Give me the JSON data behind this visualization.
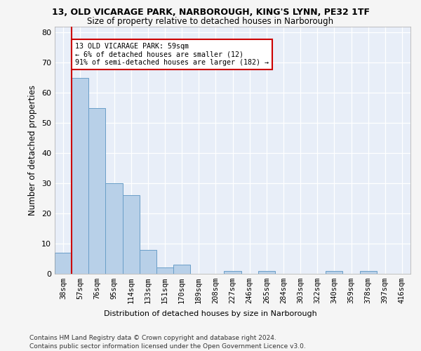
{
  "title_line1": "13, OLD VICARAGE PARK, NARBOROUGH, KING'S LYNN, PE32 1TF",
  "title_line2": "Size of property relative to detached houses in Narborough",
  "xlabel": "Distribution of detached houses by size in Narborough",
  "ylabel": "Number of detached properties",
  "bin_labels": [
    "38sqm",
    "57sqm",
    "76sqm",
    "95sqm",
    "114sqm",
    "133sqm",
    "151sqm",
    "170sqm",
    "189sqm",
    "208sqm",
    "227sqm",
    "246sqm",
    "265sqm",
    "284sqm",
    "303sqm",
    "322sqm",
    "340sqm",
    "359sqm",
    "378sqm",
    "397sqm",
    "416sqm"
  ],
  "bar_values": [
    7,
    65,
    55,
    30,
    26,
    8,
    2,
    3,
    0,
    0,
    1,
    0,
    1,
    0,
    0,
    0,
    1,
    0,
    1,
    0,
    0
  ],
  "bar_color": "#b8d0e8",
  "bar_edge_color": "#6a9fc8",
  "ylim": [
    0,
    82
  ],
  "yticks": [
    0,
    10,
    20,
    30,
    40,
    50,
    60,
    70,
    80
  ],
  "annotation_text": "13 OLD VICARAGE PARK: 59sqm\n← 6% of detached houses are smaller (12)\n91% of semi-detached houses are larger (182) →",
  "annotation_box_color": "#ffffff",
  "annotation_box_edge": "#cc0000",
  "property_line_color": "#cc0000",
  "footer_line1": "Contains HM Land Registry data © Crown copyright and database right 2024.",
  "footer_line2": "Contains public sector information licensed under the Open Government Licence v3.0.",
  "plot_bg_color": "#e8eef8",
  "fig_bg_color": "#f5f5f5"
}
